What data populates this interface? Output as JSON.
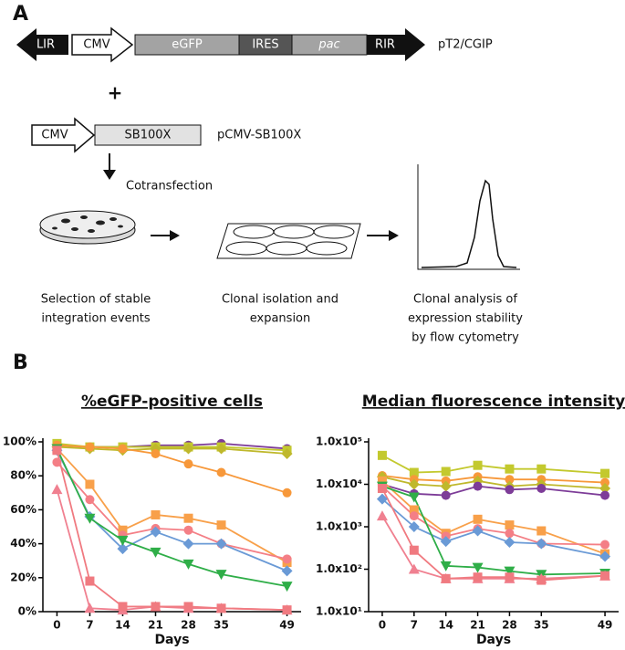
{
  "panel_labels": [
    "A",
    "B"
  ],
  "diagram": {
    "construct1": {
      "parts": [
        "LIR",
        "CMV",
        "eGFP",
        "IRES",
        "pac",
        "RIR"
      ],
      "name": "pT2/CGIP"
    },
    "plus": "+",
    "construct2": {
      "parts": [
        "CMV",
        "SB100X"
      ],
      "name": "pCMV-SB100X"
    },
    "step": "Cotransfection",
    "captions": [
      [
        "Selection of stable",
        "integration events"
      ],
      [
        "Clonal isolation and",
        "expansion"
      ],
      [
        "Clonal analysis of",
        "expression stability",
        "by flow cytometry"
      ]
    ]
  },
  "chart_data": [
    {
      "type": "line",
      "title": "%eGFP-positive cells",
      "xlabel": "Days",
      "log_y": false,
      "grid": false,
      "x": [
        0,
        7,
        14,
        21,
        28,
        35,
        49
      ],
      "xlim": [
        -3,
        52
      ],
      "xticks": [
        0,
        7,
        14,
        21,
        28,
        35,
        49
      ],
      "ylim": [
        0,
        100
      ],
      "yticks": [
        {
          "value": 0,
          "label": "0%"
        },
        {
          "value": 20,
          "label": "20%"
        },
        {
          "value": 40,
          "label": "40%"
        },
        {
          "value": 60,
          "label": "60%"
        },
        {
          "value": 80,
          "label": "80%"
        },
        {
          "value": 100,
          "label": "100%"
        }
      ],
      "series": [
        {
          "color": "#7d3c98",
          "marker": "circle",
          "values": [
            98,
            97,
            97,
            98,
            98,
            99,
            96
          ]
        },
        {
          "color": "#c3c92e",
          "marker": "square",
          "values": [
            99,
            97,
            97,
            97,
            97,
            97,
            95
          ]
        },
        {
          "color": "#bfb82c",
          "marker": "diamond",
          "values": [
            97,
            96,
            95,
            96,
            96,
            96,
            93
          ]
        },
        {
          "color": "#f7983a",
          "marker": "circle",
          "values": [
            98,
            97,
            96,
            93,
            87,
            82,
            70
          ]
        },
        {
          "color": "#f8a04a",
          "marker": "square",
          "values": [
            96,
            75,
            48,
            57,
            55,
            51,
            29
          ]
        },
        {
          "color": "#f47f86",
          "marker": "circle",
          "values": [
            88,
            66,
            45,
            49,
            48,
            40,
            31
          ]
        },
        {
          "color": "#6a9ad6",
          "marker": "diamond",
          "values": [
            95,
            56,
            37,
            47,
            40,
            40,
            24
          ]
        },
        {
          "color": "#2fae48",
          "marker": "triangle-down",
          "values": [
            96,
            55,
            42,
            35,
            28,
            22,
            15
          ]
        },
        {
          "color": "#f08090",
          "marker": "triangle-up",
          "values": [
            72,
            2,
            1,
            3,
            2,
            2,
            1
          ]
        },
        {
          "color": "#f07a80",
          "marker": "square",
          "values": [
            95,
            18,
            3,
            3,
            3,
            2,
            1
          ]
        }
      ]
    },
    {
      "type": "line",
      "title": "Median fluorescence intensity",
      "xlabel": "Days",
      "log_y": true,
      "grid": false,
      "x": [
        0,
        7,
        14,
        21,
        28,
        35,
        49
      ],
      "xlim": [
        -3,
        52
      ],
      "xticks": [
        0,
        7,
        14,
        21,
        28,
        35,
        49
      ],
      "ylim": [
        10,
        100000
      ],
      "yticks": [
        {
          "value": 10,
          "label": "1.0x10¹"
        },
        {
          "value": 100,
          "label": "1.0x10²"
        },
        {
          "value": 1000,
          "label": "1.0x10³"
        },
        {
          "value": 10000,
          "label": "1.0x10⁴"
        },
        {
          "value": 100000,
          "label": "1.0x10⁵"
        }
      ],
      "series": [
        {
          "color": "#c3c92e",
          "marker": "square",
          "values": [
            48000,
            19000,
            20000,
            28000,
            23000,
            23000,
            18000
          ]
        },
        {
          "color": "#f7983a",
          "marker": "circle",
          "values": [
            16000,
            13000,
            12000,
            15000,
            13000,
            13000,
            11000
          ]
        },
        {
          "color": "#bfb82c",
          "marker": "diamond",
          "values": [
            15000,
            10000,
            9000,
            12000,
            9000,
            10000,
            8000
          ]
        },
        {
          "color": "#7d3c98",
          "marker": "circle",
          "values": [
            10000,
            6000,
            5500,
            9000,
            7500,
            8000,
            5500
          ]
        },
        {
          "color": "#f8a04a",
          "marker": "square",
          "values": [
            12000,
            2500,
            700,
            1500,
            1100,
            800,
            230
          ]
        },
        {
          "color": "#f47f86",
          "marker": "circle",
          "values": [
            9000,
            1800,
            600,
            900,
            700,
            400,
            380
          ]
        },
        {
          "color": "#6a9ad6",
          "marker": "diamond",
          "values": [
            4500,
            1000,
            450,
            800,
            430,
            400,
            200
          ]
        },
        {
          "color": "#2fae48",
          "marker": "triangle-down",
          "values": [
            9000,
            5000,
            120,
            110,
            90,
            75,
            80
          ]
        },
        {
          "color": "#f08090",
          "marker": "triangle-up",
          "values": [
            1800,
            100,
            60,
            60,
            60,
            60,
            70
          ]
        },
        {
          "color": "#f07a80",
          "marker": "square",
          "values": [
            8000,
            280,
            60,
            65,
            65,
            55,
            70
          ]
        }
      ]
    }
  ]
}
